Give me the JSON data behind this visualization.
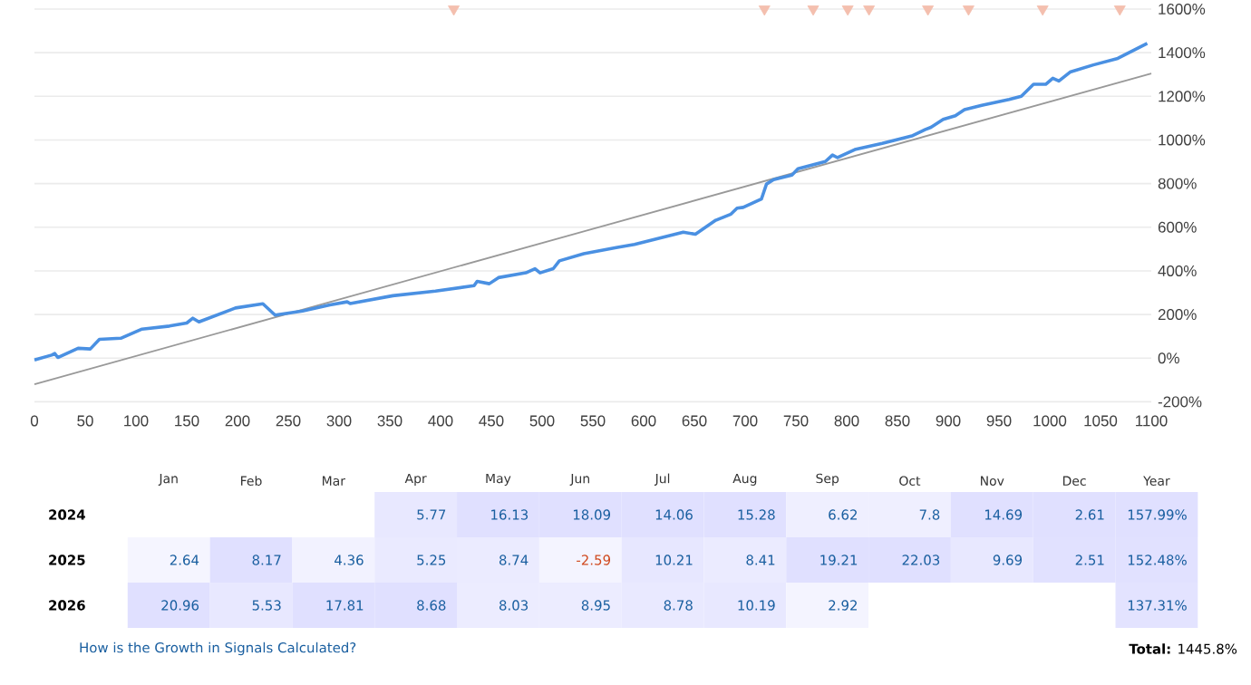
{
  "chart_data": [
    {
      "type": "line",
      "xlim": [
        0,
        1100
      ],
      "ylim": [
        -200,
        1600
      ],
      "grid": "y",
      "xticks": [
        0,
        50,
        100,
        150,
        200,
        250,
        300,
        350,
        400,
        450,
        500,
        550,
        600,
        650,
        700,
        750,
        800,
        850,
        900,
        950,
        1000,
        1050,
        1100
      ],
      "yticks": [
        {
          "value": -200,
          "label": "-200%"
        },
        {
          "value": 0,
          "label": "0%"
        },
        {
          "value": 200,
          "label": "200%"
        },
        {
          "value": 400,
          "label": "400%"
        },
        {
          "value": 600,
          "label": "600%"
        },
        {
          "value": 800,
          "label": "800%"
        },
        {
          "value": 1000,
          "label": "1000%"
        },
        {
          "value": 1200,
          "label": "1200%"
        },
        {
          "value": 1400,
          "label": "1400%"
        },
        {
          "value": 1600,
          "label": "1600%"
        }
      ],
      "series": [
        {
          "type": "line",
          "color": "#999999",
          "x": [
            0,
            1100
          ],
          "values": [
            -120,
            1305
          ]
        },
        {
          "type": "line",
          "color": "#4a90e2",
          "x": [
            0,
            17,
            20,
            23,
            43,
            55,
            64,
            85,
            106,
            133,
            150,
            156,
            162,
            198,
            225,
            237,
            264,
            291,
            308,
            311,
            353,
            395,
            433,
            436,
            448,
            457,
            484,
            493,
            498,
            511,
            517,
            541,
            573,
            591,
            639,
            651,
            671,
            686,
            692,
            698,
            716,
            721,
            728,
            746,
            752,
            779,
            786,
            791,
            808,
            835,
            865,
            877,
            883,
            895,
            907,
            916,
            933,
            960,
            972,
            984,
            996,
            1003,
            1009,
            1020,
            1043,
            1067,
            1096
          ],
          "values": [
            -8,
            14,
            21,
            3,
            45,
            42,
            86,
            91,
            133,
            147,
            161,
            183,
            166,
            230,
            249,
            197,
            216,
            244,
            258,
            250,
            286,
            307,
            332,
            352,
            341,
            369,
            391,
            410,
            391,
            410,
            446,
            479,
            507,
            521,
            577,
            568,
            632,
            660,
            687,
            691,
            729,
            798,
            818,
            839,
            868,
            901,
            931,
            919,
            956,
            984,
            1020,
            1047,
            1058,
            1094,
            1111,
            1139,
            1159,
            1186,
            1200,
            1255,
            1255,
            1283,
            1270,
            1311,
            1344,
            1374,
            1443
          ]
        },
        {
          "type": "scatter",
          "marker": "triangle",
          "color": "#f4bfae",
          "x": [
            413,
            719,
            767,
            801,
            822,
            880,
            920,
            993,
            1069
          ],
          "values": [
            1600,
            1600,
            1600,
            1600,
            1600,
            1600,
            1600,
            1600,
            1600
          ]
        }
      ]
    },
    {
      "type": "heatmap",
      "cells": [
        [
          null,
          null,
          null,
          5.77,
          16.13,
          18.09,
          14.06,
          15.28,
          6.62,
          7.8,
          14.69,
          2.61,
          157.99
        ],
        [
          2.64,
          8.17,
          4.36,
          5.25,
          8.74,
          -2.59,
          10.21,
          8.41,
          19.21,
          22.03,
          9.69,
          2.51,
          152.48
        ],
        [
          20.96,
          5.53,
          17.81,
          8.68,
          8.03,
          8.95,
          8.78,
          10.19,
          2.92,
          null,
          null,
          null,
          137.31
        ]
      ],
      "categories": [
        "Jan",
        "Feb",
        "Mar",
        "Apr",
        "May",
        "Jun",
        "Jul",
        "Aug",
        "Sep",
        "Oct",
        "Nov",
        "Dec",
        "Year"
      ],
      "y_categories": [
        "2024",
        "2025",
        "2026"
      ],
      "cell_labels": [
        [
          null,
          null,
          null,
          "5.77",
          "16.13",
          "18.09",
          "14.06",
          "15.28",
          "6.62",
          "7.8",
          "14.69",
          "2.61",
          "157.99%"
        ],
        [
          "2.64",
          "8.17",
          "4.36",
          "5.25",
          "8.74",
          "-2.59",
          "10.21",
          "8.41",
          "19.21",
          "22.03",
          "9.69",
          "2.51",
          "152.48%"
        ],
        [
          "20.96",
          "5.53",
          "17.81",
          "8.68",
          "8.03",
          "8.95",
          "8.78",
          "10.19",
          "2.92",
          null,
          null,
          null,
          "137.31%"
        ]
      ],
      "annotations": [
        "How is the Growth in Signals Calculated?",
        "**Total:** 1445.8%"
      ]
    }
  ]
}
